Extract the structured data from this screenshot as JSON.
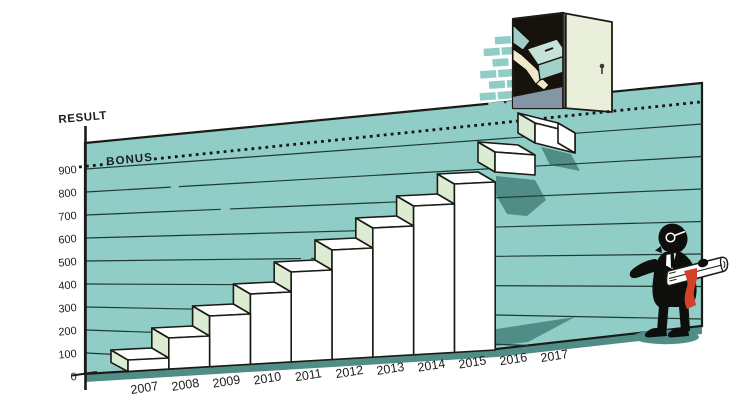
{
  "chart_data": {
    "type": "bar",
    "title": "",
    "categories": [
      "2007",
      "2008",
      "2009",
      "2010",
      "2011",
      "2012",
      "2013",
      "2014",
      "2015",
      "2016",
      "2017"
    ],
    "values": [
      100,
      200,
      300,
      400,
      500,
      600,
      700,
      800,
      900,
      1000,
      1100
    ],
    "xlabel": "",
    "ylabel": "RESULT",
    "y_ticks": [
      0,
      100,
      200,
      300,
      400,
      500,
      600,
      700,
      800,
      900
    ],
    "ylim": [
      0,
      1150
    ],
    "grid": true,
    "legend": false,
    "annotations": [
      {
        "label": "BONUS",
        "y": 950,
        "style": "dotted-line"
      }
    ],
    "style": "isometric staircase illustration; columns 2007-2015 rise from ground, 2016-2017 are floating steps leading to an open door"
  },
  "colors": {
    "wall": "#90cdc6",
    "wall_shadow": "#4f8d86",
    "gridline": "#1e3a37",
    "outline": "#1b1b16",
    "step_front": "#ffffff",
    "step_side_green": "#dcecd3",
    "door_panel": "#e9efdb",
    "doorway_dark": "#17120c",
    "doorway_floor": "#8496a5",
    "arm_cream": "#efe8ca",
    "box_teal_top": "#c6e3da",
    "box_teal_front": "#a2d0c8",
    "ribbon_red": "#d4402a",
    "figure_black": "#0e0e0c",
    "text": "#1d1d1d"
  }
}
